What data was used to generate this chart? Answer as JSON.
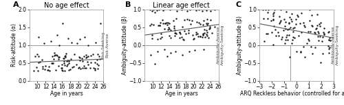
{
  "panel_A": {
    "title": "No age effect",
    "xlabel": "Age in years",
    "ylabel": "Risk-attitude (α)",
    "ylabel_right_top": "Risk-Seeking",
    "ylabel_right_bottom": "Risk-Averse",
    "xlim": [
      8,
      26
    ],
    "ylim": [
      0,
      2
    ],
    "hline_y": 1.0,
    "xticks": [
      10,
      12,
      14,
      16,
      18,
      20,
      22,
      24,
      26
    ],
    "yticks": [
      0,
      0.5,
      1.0,
      1.5,
      2.0
    ],
    "trend_x": [
      8,
      26
    ],
    "trend_y": [
      0.52,
      0.61
    ]
  },
  "panel_B": {
    "title": "Linear age effect",
    "xlabel": "Age in years",
    "ylabel": "Ambiguity-attitude (β)",
    "ylabel_right_top": "Ambiguity-Averse",
    "ylabel_right_bottom": "Ambiguity-Seeking",
    "xlim": [
      8,
      26
    ],
    "ylim": [
      -1,
      1
    ],
    "hline_y": 0.0,
    "xticks": [
      10,
      12,
      14,
      16,
      18,
      20,
      22,
      24,
      26
    ],
    "yticks": [
      -1,
      -0.5,
      0,
      0.5,
      1
    ],
    "trend_x": [
      8,
      26
    ],
    "trend_y": [
      0.28,
      0.58
    ]
  },
  "panel_C": {
    "title": "",
    "xlabel": "ARQ Reckless behavior (controlled for age)",
    "ylabel": "Ambiguity-attitude (β)",
    "ylabel_right_top": "Ambiguity-Averse",
    "ylabel_right_bottom": "Ambiguity-Seeking",
    "xlim": [
      -3,
      3
    ],
    "ylim": [
      -1,
      1
    ],
    "hline_y": 0.0,
    "vline_x": -0.5,
    "xticks": [
      -3,
      -2,
      -1,
      0,
      1,
      2,
      3
    ],
    "yticks": [
      -1,
      -0.5,
      0,
      0.5,
      1
    ],
    "trend_x": [
      -3,
      3
    ],
    "trend_y": [
      0.6,
      0.2
    ]
  },
  "figure_label_A": "A",
  "figure_label_B": "B",
  "figure_label_C": "C",
  "scatter_color": "#1a1a1a",
  "scatter_size": 3,
  "trend_color": "#555555",
  "hline_color": "#999999",
  "vline_color": "#999999",
  "background_color": "#ffffff",
  "font_size_title": 7,
  "font_size_label": 5.5,
  "font_size_tick": 5.5,
  "font_size_panel": 8,
  "font_size_right_label": 4.5,
  "spine_color": "#aaaaaa",
  "spine_lw": 0.5
}
